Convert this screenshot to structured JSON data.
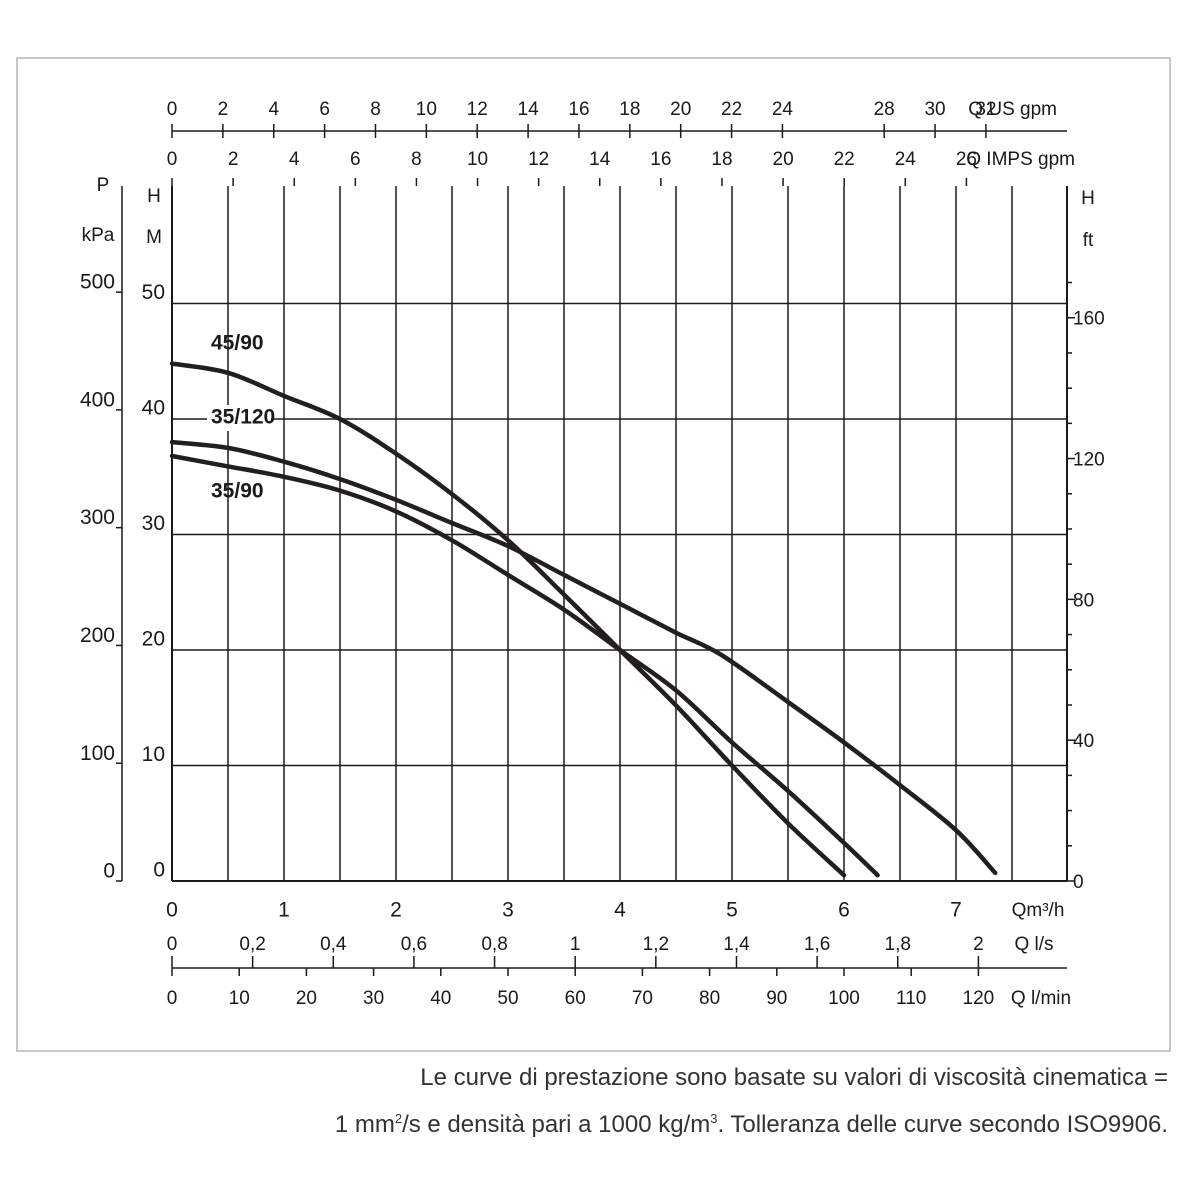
{
  "chart_data": {
    "type": "line",
    "series": [
      {
        "name": "45/90",
        "x": [
          0,
          0.5,
          1.0,
          1.5,
          2.0,
          2.5,
          3.0,
          3.5,
          4.0,
          4.5,
          5.0,
          5.5,
          6.0
        ],
        "y": [
          44.8,
          44.0,
          42.0,
          40.0,
          37.0,
          33.5,
          29.5,
          24.8,
          20.0,
          15.2,
          10.0,
          5.0,
          0.5
        ]
      },
      {
        "name": "35/120",
        "x": [
          0,
          0.5,
          1.0,
          1.5,
          2.0,
          2.5,
          3.0,
          3.5,
          4.0,
          4.5,
          4.9,
          5.5,
          6.0,
          6.5,
          7.0,
          7.35
        ],
        "y": [
          38.0,
          37.5,
          36.3,
          34.8,
          33.0,
          31.0,
          29.0,
          26.5,
          24.0,
          21.5,
          19.6,
          15.5,
          12.0,
          8.3,
          4.4,
          0.7
        ]
      },
      {
        "name": "35/90",
        "x": [
          0,
          0.5,
          1.0,
          1.5,
          2.0,
          2.5,
          3.0,
          3.5,
          4.0,
          4.5,
          5.0,
          5.5,
          6.0,
          6.3
        ],
        "y": [
          36.8,
          35.9,
          35.0,
          33.8,
          32.0,
          29.5,
          26.5,
          23.5,
          20.0,
          16.5,
          12.0,
          7.8,
          3.3,
          0.5
        ]
      }
    ],
    "series_labels": [
      "45/90",
      "35/120",
      "35/90"
    ],
    "x_axis": {
      "label": "Qm³/h",
      "min": 0,
      "max": 7.5,
      "ticks": [
        "0",
        "1",
        "2",
        "3",
        "4",
        "5",
        "6",
        "7"
      ]
    },
    "y_axis": {
      "label_top": "H",
      "label_unit": "M",
      "min": 0,
      "max": 50,
      "ticks": [
        "0",
        "10",
        "20",
        "30",
        "40",
        "50"
      ]
    },
    "axis_us_gpm": {
      "label": "Q US gpm",
      "ticks": [
        0,
        2,
        4,
        6,
        8,
        10,
        12,
        14,
        16,
        18,
        20,
        22,
        24,
        28,
        30,
        32
      ]
    },
    "axis_imps_gpm": {
      "label": "Q IMPS gpm",
      "ticks": [
        0,
        2,
        4,
        6,
        8,
        10,
        12,
        14,
        16,
        18,
        20,
        22,
        24,
        26
      ]
    },
    "axis_ls": {
      "label": "Q l/s",
      "ticks": [
        "0",
        "0,2",
        "0,4",
        "0,6",
        "0,8",
        "1",
        "1,2",
        "1,4",
        "1,6",
        "1,8",
        "2"
      ]
    },
    "axis_lmin": {
      "label": "Q l/min",
      "ticks": [
        0,
        10,
        20,
        30,
        40,
        50,
        60,
        70,
        80,
        90,
        100,
        110,
        120
      ]
    },
    "axis_kpa": {
      "label_top": "P",
      "label_unit": "kPa",
      "ticks": [
        0,
        100,
        200,
        300,
        400,
        500
      ]
    },
    "axis_ft": {
      "label_top": "H",
      "label_unit": "ft",
      "ticks": [
        0,
        40,
        80,
        120,
        160
      ]
    },
    "grid": true
  },
  "caption": {
    "line1": "Le curve di prestazione sono basate su valori di viscosità cinematica =",
    "line2_pre": "1 mm",
    "line2_sup1": "2",
    "line2_mid": "/s e densità pari a 1000 kg/m",
    "line2_sup2": "3",
    "line2_post": ". Tolleranza delle curve secondo ISO9906."
  }
}
